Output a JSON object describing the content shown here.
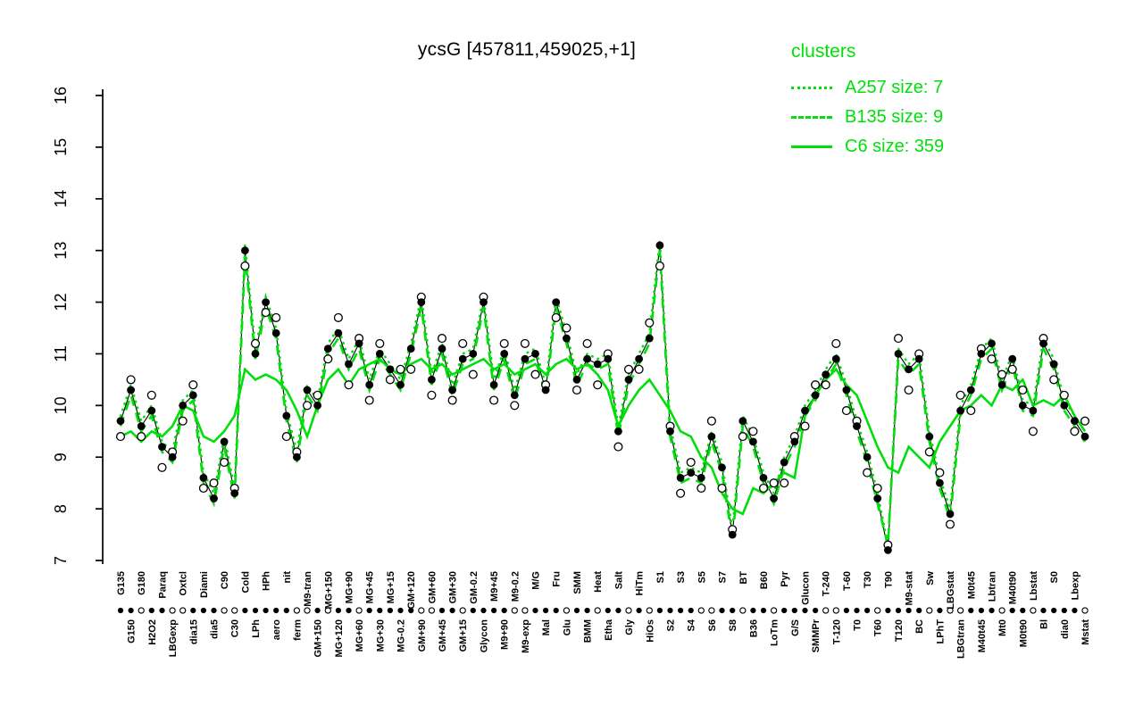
{
  "title": "ycsG [457811,459025,+1]",
  "legend": {
    "header": "clusters",
    "entries": [
      {
        "label": "A257 size: 7",
        "line_style": "dotted"
      },
      {
        "label": "B135 size: 9",
        "line_style": "dashed"
      },
      {
        "label": "C6 size: 359",
        "line_style": "solid"
      }
    ]
  },
  "colors": {
    "cluster_green": "#00DF0A",
    "series_black": "#000000",
    "background": "#FFFFFF"
  },
  "chart_data": {
    "type": "line",
    "title": "ycsG [457811,459025,+1]",
    "xlabel": "",
    "ylabel": "",
    "ylim": [
      7,
      16
    ],
    "yticks": [
      7,
      8,
      9,
      10,
      11,
      12,
      13,
      14,
      15,
      16
    ],
    "grid": false,
    "legend_position": "top-right",
    "categories": [
      "G135",
      "G150",
      "G180",
      "H2O2",
      "Paraq",
      "LBGexp",
      "Oxtcl",
      "dia15",
      "Diami",
      "dia5",
      "C90",
      "C30",
      "Cold",
      "LPh",
      "HPh",
      "aero",
      "nit",
      "ferm",
      "M9-tran",
      "GM+150",
      "MG+150",
      "MG+120",
      "MG+90",
      "MG+60",
      "MG+45",
      "MG+30",
      "MG+15",
      "MG-0.2",
      "GM+120",
      "GM+90",
      "GM+60",
      "GM+45",
      "GM+30",
      "GM+15",
      "GM-0.2",
      "Glycon",
      "M9+45",
      "M9+90",
      "M9-0.2",
      "M9-exp",
      "M/G",
      "Mal",
      "Fru",
      "Glu",
      "SMM",
      "BMM",
      "Heat",
      "Etha",
      "Salt",
      "Gly",
      "HiTm",
      "HiOs",
      "S1",
      "S2",
      "S3",
      "S4",
      "S5",
      "S6",
      "S7",
      "S8",
      "BT",
      "B36",
      "B60",
      "LoTm",
      "Pyr",
      "G/S",
      "Glucon",
      "SMMPr",
      "T-240",
      "T-120",
      "T-60",
      "T0",
      "T30",
      "T60",
      "T90",
      "T120",
      "M9-stat",
      "BC",
      "Sw",
      "LPhT",
      "LBGstat",
      "LBGtran",
      "M0t45",
      "M40t45",
      "Lbtran",
      "Mt0",
      "M40t90",
      "M0t90",
      "Lbstat",
      "Bl",
      "S0",
      "dia0",
      "Lbexp",
      "Mstat"
    ],
    "series": [
      {
        "name": "ycsG",
        "role": "gene",
        "line": "solid",
        "marker": "filled",
        "color": "#000000",
        "values": [
          9.7,
          10.3,
          9.6,
          9.9,
          9.2,
          9.0,
          10.0,
          10.2,
          8.6,
          8.2,
          9.3,
          8.3,
          13.0,
          11.0,
          12.0,
          11.4,
          9.8,
          9.0,
          10.3,
          10.0,
          11.1,
          11.4,
          10.8,
          11.2,
          10.4,
          11.0,
          10.7,
          10.4,
          11.1,
          12.0,
          10.5,
          11.1,
          10.3,
          10.9,
          11.0,
          12.0,
          10.4,
          11.0,
          10.2,
          10.9,
          11.0,
          10.3,
          12.0,
          11.3,
          10.5,
          10.9,
          10.8,
          10.9,
          9.5,
          10.5,
          10.9,
          11.3,
          13.1,
          9.5,
          8.6,
          8.7,
          8.6,
          9.4,
          8.8,
          7.5,
          9.7,
          9.3,
          8.6,
          8.2,
          8.9,
          9.3,
          9.9,
          10.2,
          10.6,
          10.9,
          10.3,
          9.6,
          9.0,
          8.2,
          7.2,
          11.0,
          10.7,
          10.9,
          9.4,
          8.5,
          7.9,
          9.9,
          10.3,
          11.0,
          11.2,
          10.4,
          10.9,
          10.0,
          9.9,
          11.2,
          10.8,
          10.0,
          9.7,
          9.4
        ]
      },
      {
        "name": "ycsG-replicate",
        "role": "gene-replicate",
        "line": "none",
        "marker": "open",
        "color": "#000000",
        "values": [
          9.4,
          10.5,
          9.4,
          10.2,
          8.8,
          9.1,
          9.7,
          10.4,
          8.4,
          8.5,
          8.9,
          8.4,
          12.7,
          11.2,
          11.8,
          11.7,
          9.4,
          9.1,
          10.0,
          10.2,
          10.9,
          11.7,
          10.4,
          11.3,
          10.1,
          11.2,
          10.5,
          10.7,
          10.7,
          12.1,
          10.2,
          11.3,
          10.1,
          11.2,
          10.6,
          12.1,
          10.1,
          11.2,
          10.0,
          11.2,
          10.6,
          10.4,
          11.7,
          11.5,
          10.3,
          11.2,
          10.4,
          11.0,
          9.2,
          10.7,
          10.7,
          11.6,
          12.7,
          9.6,
          8.3,
          8.9,
          8.4,
          9.7,
          8.4,
          7.6,
          9.4,
          9.5,
          8.4,
          8.5,
          8.5,
          9.4,
          9.6,
          10.4,
          10.4,
          11.2,
          9.9,
          9.7,
          8.7,
          8.4,
          7.3,
          11.3,
          10.3,
          11.0,
          9.1,
          8.7,
          7.7,
          10.2,
          9.9,
          11.1,
          10.9,
          10.6,
          10.7,
          10.3,
          9.5,
          11.3,
          10.5,
          10.2,
          9.5,
          9.7
        ]
      },
      {
        "name": "A257",
        "role": "cluster",
        "size": 7,
        "line": "dotted",
        "color": "#00DF0A",
        "values": [
          9.8,
          10.4,
          9.7,
          10.0,
          9.3,
          9.1,
          10.1,
          10.3,
          8.7,
          8.3,
          9.4,
          8.4,
          13.1,
          11.1,
          12.1,
          11.5,
          9.9,
          9.1,
          10.4,
          10.1,
          11.2,
          11.5,
          10.9,
          11.3,
          10.5,
          11.1,
          10.8,
          10.5,
          11.2,
          12.1,
          10.6,
          11.2,
          10.4,
          11.0,
          11.1,
          12.1,
          10.5,
          11.1,
          10.3,
          11.0,
          11.1,
          10.4,
          12.1,
          11.4,
          10.6,
          11.0,
          10.9,
          11.0,
          9.6,
          10.6,
          11.0,
          11.4,
          13.2,
          9.6,
          8.7,
          8.8,
          8.7,
          9.5,
          8.9,
          7.6,
          9.8,
          9.4,
          8.7,
          8.3,
          9.0,
          9.4,
          10.0,
          10.3,
          10.7,
          11.0,
          10.4,
          9.7,
          9.1,
          8.3,
          7.3,
          11.1,
          10.8,
          11.0,
          9.5,
          8.6,
          8.0,
          10.0,
          10.4,
          11.1,
          11.3,
          10.5,
          11.0,
          10.1,
          10.0,
          11.3,
          10.9,
          10.1,
          9.8,
          9.5
        ]
      },
      {
        "name": "B135",
        "role": "cluster",
        "size": 9,
        "line": "dashed",
        "color": "#00DF0A",
        "values": [
          9.6,
          10.2,
          9.5,
          9.8,
          9.1,
          8.9,
          9.9,
          10.1,
          8.5,
          8.1,
          9.2,
          8.2,
          12.9,
          10.9,
          11.9,
          11.3,
          9.7,
          8.9,
          10.2,
          9.9,
          11.0,
          11.3,
          10.7,
          11.1,
          10.3,
          10.9,
          10.6,
          10.3,
          11.0,
          11.9,
          10.4,
          11.0,
          10.2,
          10.8,
          10.9,
          11.9,
          10.3,
          10.9,
          10.1,
          10.8,
          10.9,
          10.2,
          11.9,
          11.2,
          10.4,
          10.8,
          10.7,
          10.8,
          9.4,
          10.4,
          10.8,
          11.2,
          13.0,
          9.4,
          8.5,
          8.6,
          8.5,
          9.3,
          8.7,
          7.4,
          9.6,
          9.2,
          8.5,
          8.1,
          8.8,
          9.2,
          9.8,
          10.1,
          10.5,
          10.8,
          10.2,
          9.5,
          8.9,
          8.1,
          7.3,
          10.9,
          10.6,
          10.8,
          9.3,
          8.4,
          7.8,
          9.8,
          10.2,
          10.9,
          11.1,
          10.3,
          10.8,
          9.9,
          9.8,
          11.1,
          10.7,
          9.9,
          9.6,
          9.3
        ]
      },
      {
        "name": "C6",
        "role": "cluster",
        "size": 359,
        "line": "solid",
        "color": "#00DF0A",
        "values": [
          9.4,
          9.5,
          9.3,
          9.5,
          9.4,
          9.6,
          10.0,
          9.9,
          9.4,
          9.3,
          9.5,
          9.8,
          10.7,
          10.5,
          10.6,
          10.5,
          10.3,
          9.9,
          9.4,
          10.0,
          10.5,
          10.7,
          10.4,
          10.7,
          10.8,
          10.9,
          10.7,
          10.6,
          10.8,
          10.9,
          10.7,
          10.8,
          10.6,
          10.7,
          10.8,
          10.9,
          10.7,
          10.8,
          10.6,
          10.7,
          10.8,
          10.6,
          10.8,
          10.9,
          10.7,
          10.8,
          10.6,
          10.3,
          9.6,
          10.0,
          10.3,
          10.5,
          10.2,
          9.9,
          9.5,
          9.4,
          9.0,
          8.8,
          8.3,
          8.0,
          7.9,
          8.4,
          8.3,
          8.5,
          8.7,
          8.6,
          9.8,
          10.2,
          10.5,
          10.7,
          10.4,
          10.2,
          9.7,
          9.2,
          8.8,
          8.7,
          9.2,
          9.0,
          8.8,
          9.3,
          9.6,
          9.9,
          10.0,
          10.2,
          10.0,
          10.4,
          10.3,
          10.5,
          10.0,
          10.1,
          10.0,
          10.2,
          9.8,
          9.5
        ]
      }
    ],
    "baseline_marker_pattern": "ffoffoofffoofffffoofoffofffffooffoffffoofffoffoffofoffffooffoffoffffoofffoffffofoofffoffoff"
  }
}
